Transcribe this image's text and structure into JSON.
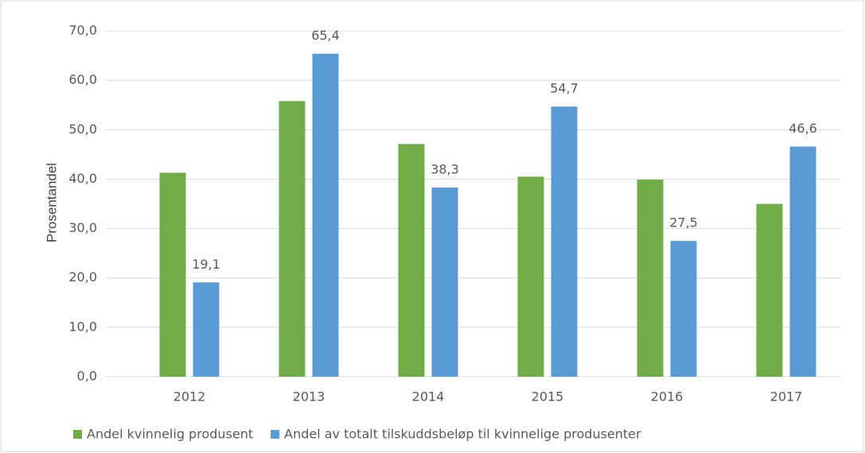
{
  "chart_data": {
    "type": "bar",
    "y_label": "Prosentandel",
    "categories": [
      "2012",
      "2013",
      "2014",
      "2015",
      "2016",
      "2017"
    ],
    "series": [
      {
        "name": "Andel kvinnelig produsent",
        "color": "#70ad47",
        "values": [
          41.3,
          55.8,
          47.1,
          40.5,
          39.9,
          35.0
        ]
      },
      {
        "name": "Andel av totalt tilskuddsbeløp til kvinnelige produsenter",
        "color": "#5b9bd5",
        "values": [
          19.1,
          65.4,
          38.3,
          54.7,
          27.5,
          46.6
        ],
        "value_labels": [
          "19,1",
          "65,4",
          "38,3",
          "54,7",
          "27,5",
          "46,6"
        ]
      }
    ],
    "ylim": [
      0,
      70
    ],
    "yticks": [
      {
        "value": 0,
        "label": "0,0"
      },
      {
        "value": 10,
        "label": "10,0"
      },
      {
        "value": 20,
        "label": "20,0"
      },
      {
        "value": 30,
        "label": "30,0"
      },
      {
        "value": 40,
        "label": "40,0"
      },
      {
        "value": 50,
        "label": "50,0"
      },
      {
        "value": 60,
        "label": "60,0"
      },
      {
        "value": 70,
        "label": "70,0"
      }
    ],
    "grid": true,
    "legend": "bottom"
  }
}
